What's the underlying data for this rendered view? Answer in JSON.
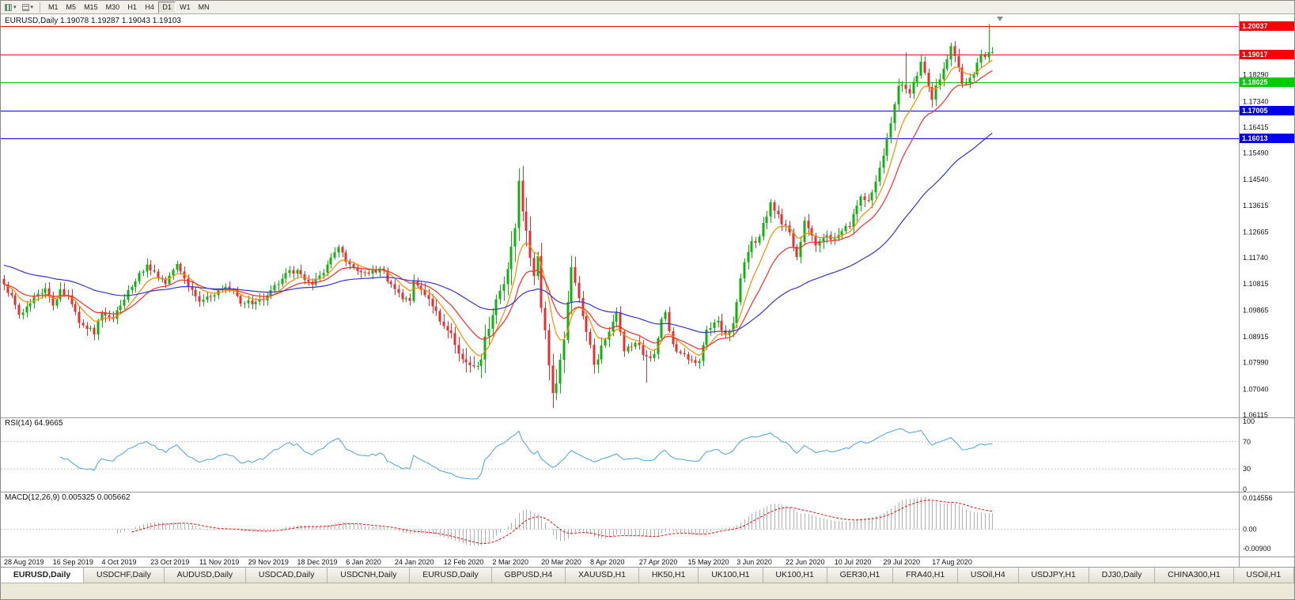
{
  "toolbar": {
    "timeframes": [
      "M1",
      "M5",
      "M15",
      "M30",
      "H1",
      "H4",
      "D1",
      "W1",
      "MN"
    ],
    "active": "D1"
  },
  "chart": {
    "title": "EURUSD,Daily",
    "ohlc_text": "1.19078 1.19287 1.19043 1.19103",
    "open": "1.19078",
    "high": "1.19287",
    "low": "1.19043",
    "close": "1.19103"
  },
  "price_axis": {
    "labels": [
      "1.18290",
      "1.17340",
      "1.16415",
      "1.15490",
      "1.14540",
      "1.13615",
      "1.12665",
      "1.11740",
      "1.10815",
      "1.09865",
      "1.08915",
      "1.07990",
      "1.07040",
      "1.06115"
    ]
  },
  "hlines": [
    {
      "value": 1.20037,
      "label": "1.20037",
      "color": "#ff0000"
    },
    {
      "value": 1.19017,
      "label": "1.19017",
      "color": "#ff0000"
    },
    {
      "value": 1.18025,
      "label": "1.18025",
      "color": "#00cc00"
    },
    {
      "value": 1.17005,
      "label": "1.17005",
      "color": "#0000ee"
    },
    {
      "value": 1.16013,
      "label": "1.16013",
      "color": "#0000ee"
    }
  ],
  "rsi": {
    "label": "RSI(14) 64.9665",
    "axis": [
      {
        "text": "100",
        "value": 100
      },
      {
        "text": "70",
        "value": 70
      },
      {
        "text": "30",
        "value": 30
      },
      {
        "text": "0",
        "value": 0
      }
    ]
  },
  "macd": {
    "label": "MACD(12,26,9) 0.005325 0.005662",
    "axis": [
      {
        "text": "0.014556",
        "value": 0.014556
      },
      {
        "text": "0.00",
        "value": 0
      },
      {
        "text": "-0.00900",
        "value": -0.009
      }
    ]
  },
  "date_axis": [
    "28 Aug 2019",
    "16 Sep 2019",
    "4 Oct 2019",
    "23 Oct 2019",
    "11 Nov 2019",
    "29 Nov 2019",
    "18 Dec 2019",
    "6 Jan 2020",
    "24 Jan 2020",
    "12 Feb 2020",
    "2 Mar 2020",
    "20 Mar 2020",
    "8 Apr 2020",
    "27 Apr 2020",
    "15 May 2020",
    "3 Jun 2020",
    "22 Jun 2020",
    "10 Jul 2020",
    "29 Jul 2020",
    "17 Aug 2020"
  ],
  "tabs": {
    "active": 0,
    "items": [
      "EURUSD,Daily",
      "USDCHF,Daily",
      "AUDUSD,Daily",
      "USDCAD,Daily",
      "USDCNH,Daily",
      "EURUSD,Daily",
      "GBPUSD,H4",
      "XAUUSD,H1",
      "HK50,H1",
      "UK100,H1",
      "UK100,H1",
      "GER30,H1",
      "FRA40,H1",
      "USOil,H4",
      "USDJPY,H1",
      "DJ30,Daily",
      "CHINA300,H1",
      "USOil,H1"
    ]
  },
  "chart_data": {
    "type": "candlestick",
    "symbol": "EURUSD",
    "timeframe": "Daily",
    "bars": 264,
    "bar_spacing": 4.75,
    "label_step": 13,
    "seed": 7,
    "noise": 0.0012,
    "wick_min": 0.0005,
    "wick": 0.0016,
    "vol_bumps": [
      [
        141,
        260,
        1.7
      ],
      [
        125,
        160,
        0.5
      ],
      [
        24,
        220,
        0.25
      ],
      [
        204,
        250,
        0.3
      ],
      [
        240,
        900,
        0.35
      ]
    ],
    "main_ylim": [
      1.0603,
      1.2046
    ],
    "anchors": [
      [
        0,
        1.1079
      ],
      [
        2,
        1.104
      ],
      [
        4,
        1.097
      ],
      [
        6,
        1.1
      ],
      [
        8,
        1.1035
      ],
      [
        11,
        1.1065
      ],
      [
        13,
        1.1003
      ],
      [
        15,
        1.1062
      ],
      [
        17,
        1.104
      ],
      [
        20,
        1.0941
      ],
      [
        22,
        1.092
      ],
      [
        24,
        1.09
      ],
      [
        26,
        1.098
      ],
      [
        29,
        1.0955
      ],
      [
        31,
        1.1003
      ],
      [
        34,
        1.107
      ],
      [
        36,
        1.112
      ],
      [
        38,
        1.115
      ],
      [
        40,
        1.1125
      ],
      [
        43,
        1.108
      ],
      [
        46,
        1.1152
      ],
      [
        49,
        1.107
      ],
      [
        52,
        1.1017
      ],
      [
        55,
        1.1035
      ],
      [
        58,
        1.1062
      ],
      [
        61,
        1.1058
      ],
      [
        63,
        1.101
      ],
      [
        65,
        1.1022
      ],
      [
        67,
        1.1017
      ],
      [
        70,
        1.104
      ],
      [
        73,
        1.108
      ],
      [
        76,
        1.113
      ],
      [
        79,
        1.1115
      ],
      [
        82,
        1.1078
      ],
      [
        85,
        1.112
      ],
      [
        87,
        1.1175
      ],
      [
        89,
        1.1213
      ],
      [
        91,
        1.116
      ],
      [
        93,
        1.114
      ],
      [
        96,
        1.1122
      ],
      [
        98,
        1.113
      ],
      [
        100,
        1.1136
      ],
      [
        103,
        1.108
      ],
      [
        106,
        1.1026
      ],
      [
        108,
        1.102
      ],
      [
        109,
        1.1093
      ],
      [
        111,
        1.106
      ],
      [
        114,
        1.1
      ],
      [
        116,
        1.0946
      ],
      [
        119,
        1.0905
      ],
      [
        121,
        1.0831
      ],
      [
        123,
        1.08
      ],
      [
        125,
        1.0786
      ],
      [
        127,
        1.081
      ],
      [
        129,
        1.092
      ],
      [
        131,
        1.1026
      ],
      [
        133,
        1.108
      ],
      [
        134,
        1.1134
      ],
      [
        136,
        1.128
      ],
      [
        137,
        1.145
      ],
      [
        138,
        1.134
      ],
      [
        139,
        1.1271
      ],
      [
        141,
        1.1109
      ],
      [
        142,
        1.118
      ],
      [
        143,
        1.0995
      ],
      [
        144,
        1.0915
      ],
      [
        146,
        1.069
      ],
      [
        147,
        1.0724
      ],
      [
        149,
        1.088
      ],
      [
        151,
        1.1141
      ],
      [
        153,
        1.103
      ],
      [
        154,
        1.0965
      ],
      [
        157,
        1.0791
      ],
      [
        159,
        1.086
      ],
      [
        161,
        1.091
      ],
      [
        163,
        1.098
      ],
      [
        165,
        1.0839
      ],
      [
        168,
        1.087
      ],
      [
        171,
        1.0821
      ],
      [
        173,
        1.083
      ],
      [
        175,
        1.0955
      ],
      [
        176,
        1.098
      ],
      [
        178,
        1.0865
      ],
      [
        180,
        1.0833
      ],
      [
        182,
        1.081
      ],
      [
        185,
        1.0805
      ],
      [
        187,
        1.0917
      ],
      [
        190,
        1.0949
      ],
      [
        192,
        1.0898
      ],
      [
        194,
        1.094
      ],
      [
        196,
        1.1101
      ],
      [
        199,
        1.1234
      ],
      [
        201,
        1.125
      ],
      [
        204,
        1.1373
      ],
      [
        206,
        1.133
      ],
      [
        208,
        1.129
      ],
      [
        211,
        1.1177
      ],
      [
        213,
        1.1307
      ],
      [
        216,
        1.1218
      ],
      [
        218,
        1.1245
      ],
      [
        220,
        1.1239
      ],
      [
        223,
        1.127
      ],
      [
        225,
        1.1284
      ],
      [
        228,
        1.1394
      ],
      [
        230,
        1.138
      ],
      [
        232,
        1.1447
      ],
      [
        234,
        1.154
      ],
      [
        236,
        1.1656
      ],
      [
        238,
        1.179
      ],
      [
        240,
        1.1778
      ],
      [
        241,
        1.1762
      ],
      [
        244,
        1.1876
      ],
      [
        247,
        1.174
      ],
      [
        249,
        1.1813
      ],
      [
        252,
        1.1932
      ],
      [
        255,
        1.1797
      ],
      [
        258,
        1.183
      ],
      [
        260,
        1.1903
      ],
      [
        262,
        1.191
      ],
      [
        263,
        1.19103
      ]
    ],
    "overrides": [
      {
        "bar": 24,
        "low": 1.0879
      },
      {
        "bar": 125,
        "low": 1.0778
      },
      {
        "bar": 137,
        "high": 1.1495
      },
      {
        "bar": 146,
        "low": 1.0636
      },
      {
        "bar": 171,
        "low": 1.0727
      },
      {
        "bar": 204,
        "high": 1.1384
      },
      {
        "bar": 240,
        "high": 1.1909
      },
      {
        "bar": 262,
        "high": 1.2011
      }
    ],
    "last_candle": {
      "open": 1.19078,
      "high": 1.19287,
      "low": 1.19043,
      "close": 1.19103
    },
    "moving_averages": [
      {
        "period": 8,
        "color": "#ff8a00"
      },
      {
        "period": 17,
        "color": "#ff2a2a"
      },
      {
        "period": 55,
        "color": "#3535cc",
        "seed": 1.115
      }
    ],
    "colors": {
      "up": "#12b012",
      "down": "#e03232",
      "grid": "#c6c6c6"
    },
    "rsi": {
      "period": 14,
      "color": "#4aa3dc",
      "ylim": [
        0,
        100
      ],
      "levels": [
        70,
        30
      ]
    },
    "macd_params": {
      "fast": 12,
      "slow": 26,
      "signal": 9,
      "ylim": [
        -0.012,
        0.016
      ],
      "hist_color": "#b0b0b0",
      "signal_color": "#ff0000"
    }
  }
}
